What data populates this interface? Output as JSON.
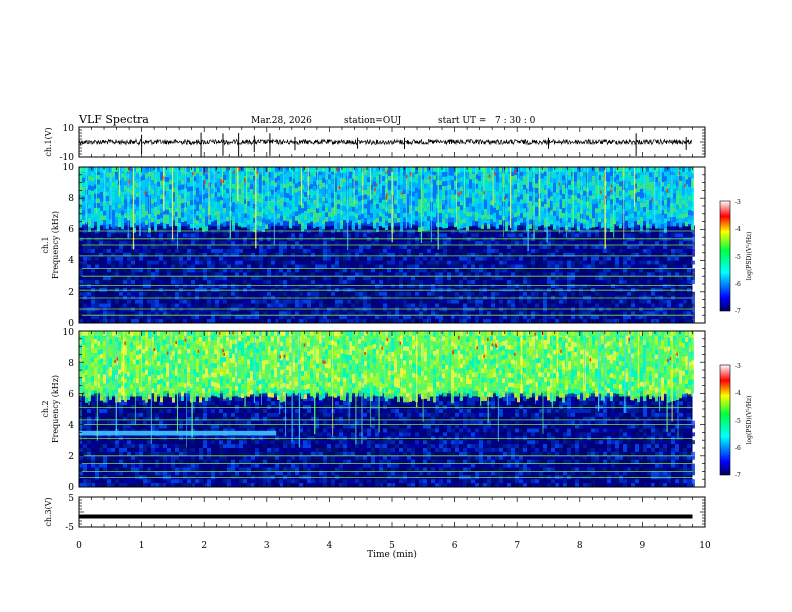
{
  "header": {
    "title": "VLF Spectra",
    "date": "Mar.28, 2026",
    "station": "station=OUJ",
    "start_label": "start  UT =",
    "start_time": "7 : 30 : 0"
  },
  "colors": {
    "background": "#ffffff",
    "axis": "#000000",
    "spectrogram_floor": "#00006e",
    "line": "#7cff00"
  },
  "chart_data": [
    {
      "id": "ch1-waveform",
      "type": "line",
      "ylabel": "ch.1(V)",
      "ylim": [
        -10,
        10
      ],
      "yticks": [
        "10",
        "-10"
      ],
      "xlim": [
        0,
        10
      ],
      "baseline": 0,
      "data_extent_min": 9.8,
      "spikes_min": [
        1.0,
        1.95,
        2.3,
        2.55,
        2.8,
        3.05,
        3.45,
        4.45,
        5.2,
        7.5,
        8.9,
        9.7
      ]
    },
    {
      "id": "ch1-spectrogram",
      "type": "heatmap",
      "ylabel": "ch.1",
      "ylabel2": "Frequency (kHz)",
      "ylim": [
        0,
        10
      ],
      "yticks": [
        "0",
        "2",
        "4",
        "6",
        "8",
        "10"
      ],
      "xlim": [
        0,
        10
      ],
      "data_extent_min": 9.8,
      "hiss_upper_edge_khz": 6.2,
      "colorbar": {
        "label": "log(PSD)(V²/Hz)",
        "range": [
          -7,
          -3
        ],
        "ticks": [
          "-3",
          "-4",
          "-5",
          "-6",
          "-7"
        ]
      },
      "tones_khz": [
        0.5,
        0.9,
        1.6,
        2.1,
        2.4,
        3.0,
        3.5,
        4.3,
        5.0,
        5.4,
        5.9
      ]
    },
    {
      "id": "ch2-spectrogram",
      "type": "heatmap",
      "ylabel": "ch.2",
      "ylabel2": "Frequency (kHz)",
      "ylim": [
        0,
        10
      ],
      "yticks": [
        "0",
        "2",
        "4",
        "6",
        "8",
        "10"
      ],
      "xlim": [
        0,
        10
      ],
      "data_extent_min": 9.8,
      "hiss_upper_edge_khz": 5.8,
      "band_khz": [
        3.3,
        3.6
      ],
      "band_end_min": 3.15,
      "colorbar": {
        "label": "log(PSD)(V²/Hz)",
        "range": [
          -7,
          -3
        ],
        "ticks": [
          "-3",
          "-4",
          "-5",
          "-6",
          "-7"
        ]
      },
      "tones_khz": [
        0.6,
        1.0,
        1.5,
        2.0,
        3.1,
        4.0,
        4.3,
        5.1
      ]
    },
    {
      "id": "ch3-level",
      "type": "line",
      "ylabel": "ch.3(V)",
      "ylim": [
        -5,
        5
      ],
      "yticks": [
        "5",
        "-5"
      ],
      "xlim": [
        0,
        10
      ],
      "value": -1.5,
      "data_extent_min": 9.8
    }
  ],
  "x_axis": {
    "label": "Time  (min)",
    "ticks": [
      "0",
      "1",
      "2",
      "3",
      "4",
      "5",
      "6",
      "7",
      "8",
      "9",
      "10"
    ]
  }
}
